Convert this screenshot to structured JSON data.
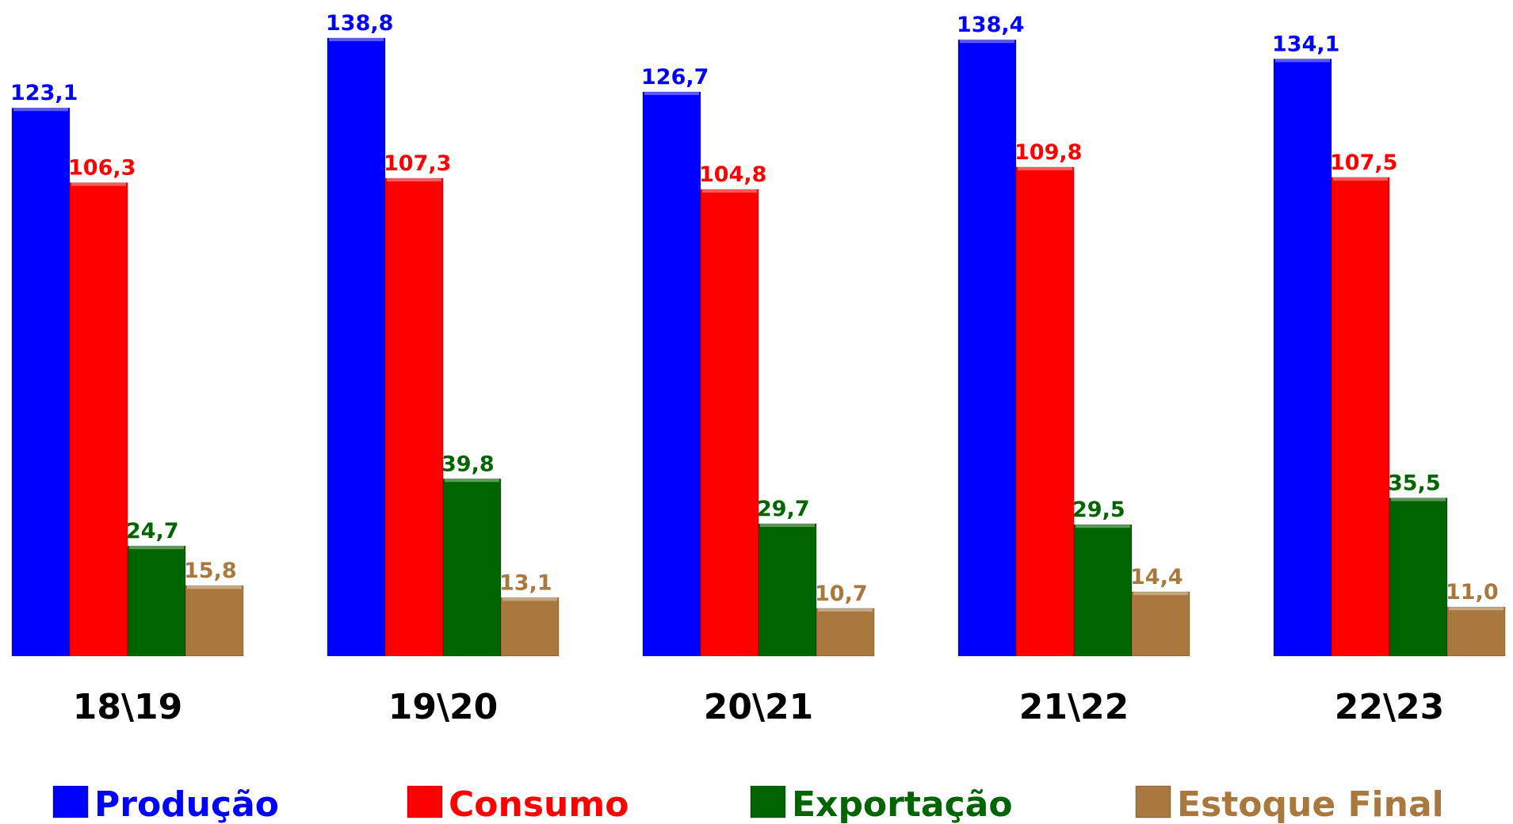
{
  "chart_data": {
    "type": "bar",
    "categories": [
      "18\\19",
      "19\\20",
      "20\\21",
      "21\\22",
      "22\\23"
    ],
    "series": [
      {
        "name": "Produção",
        "color": "#0000ff",
        "values": [
          123.1,
          138.8,
          126.7,
          138.4,
          134.1
        ],
        "value_labels": [
          "123,1",
          "138,8",
          "126,7",
          "138,4",
          "134,1"
        ]
      },
      {
        "name": "Consumo",
        "color": "#ff0000",
        "values": [
          106.3,
          107.3,
          104.8,
          109.8,
          107.5
        ],
        "value_labels": [
          "106,3",
          "107,3",
          "104,8",
          "109,8",
          "107,5"
        ]
      },
      {
        "name": "Exportação",
        "color": "#006400",
        "values": [
          24.7,
          39.8,
          29.7,
          29.5,
          35.5
        ],
        "value_labels": [
          "24,7",
          "39,8",
          "29,7",
          "29,5",
          "35,5"
        ]
      },
      {
        "name": "Estoque Final",
        "color": "#a8783e",
        "values": [
          15.8,
          13.1,
          10.7,
          14.4,
          11.0
        ],
        "value_labels": [
          "15,8",
          "13,1",
          "10,7",
          "14,4",
          "11,0"
        ]
      }
    ],
    "legend": "bottom"
  }
}
